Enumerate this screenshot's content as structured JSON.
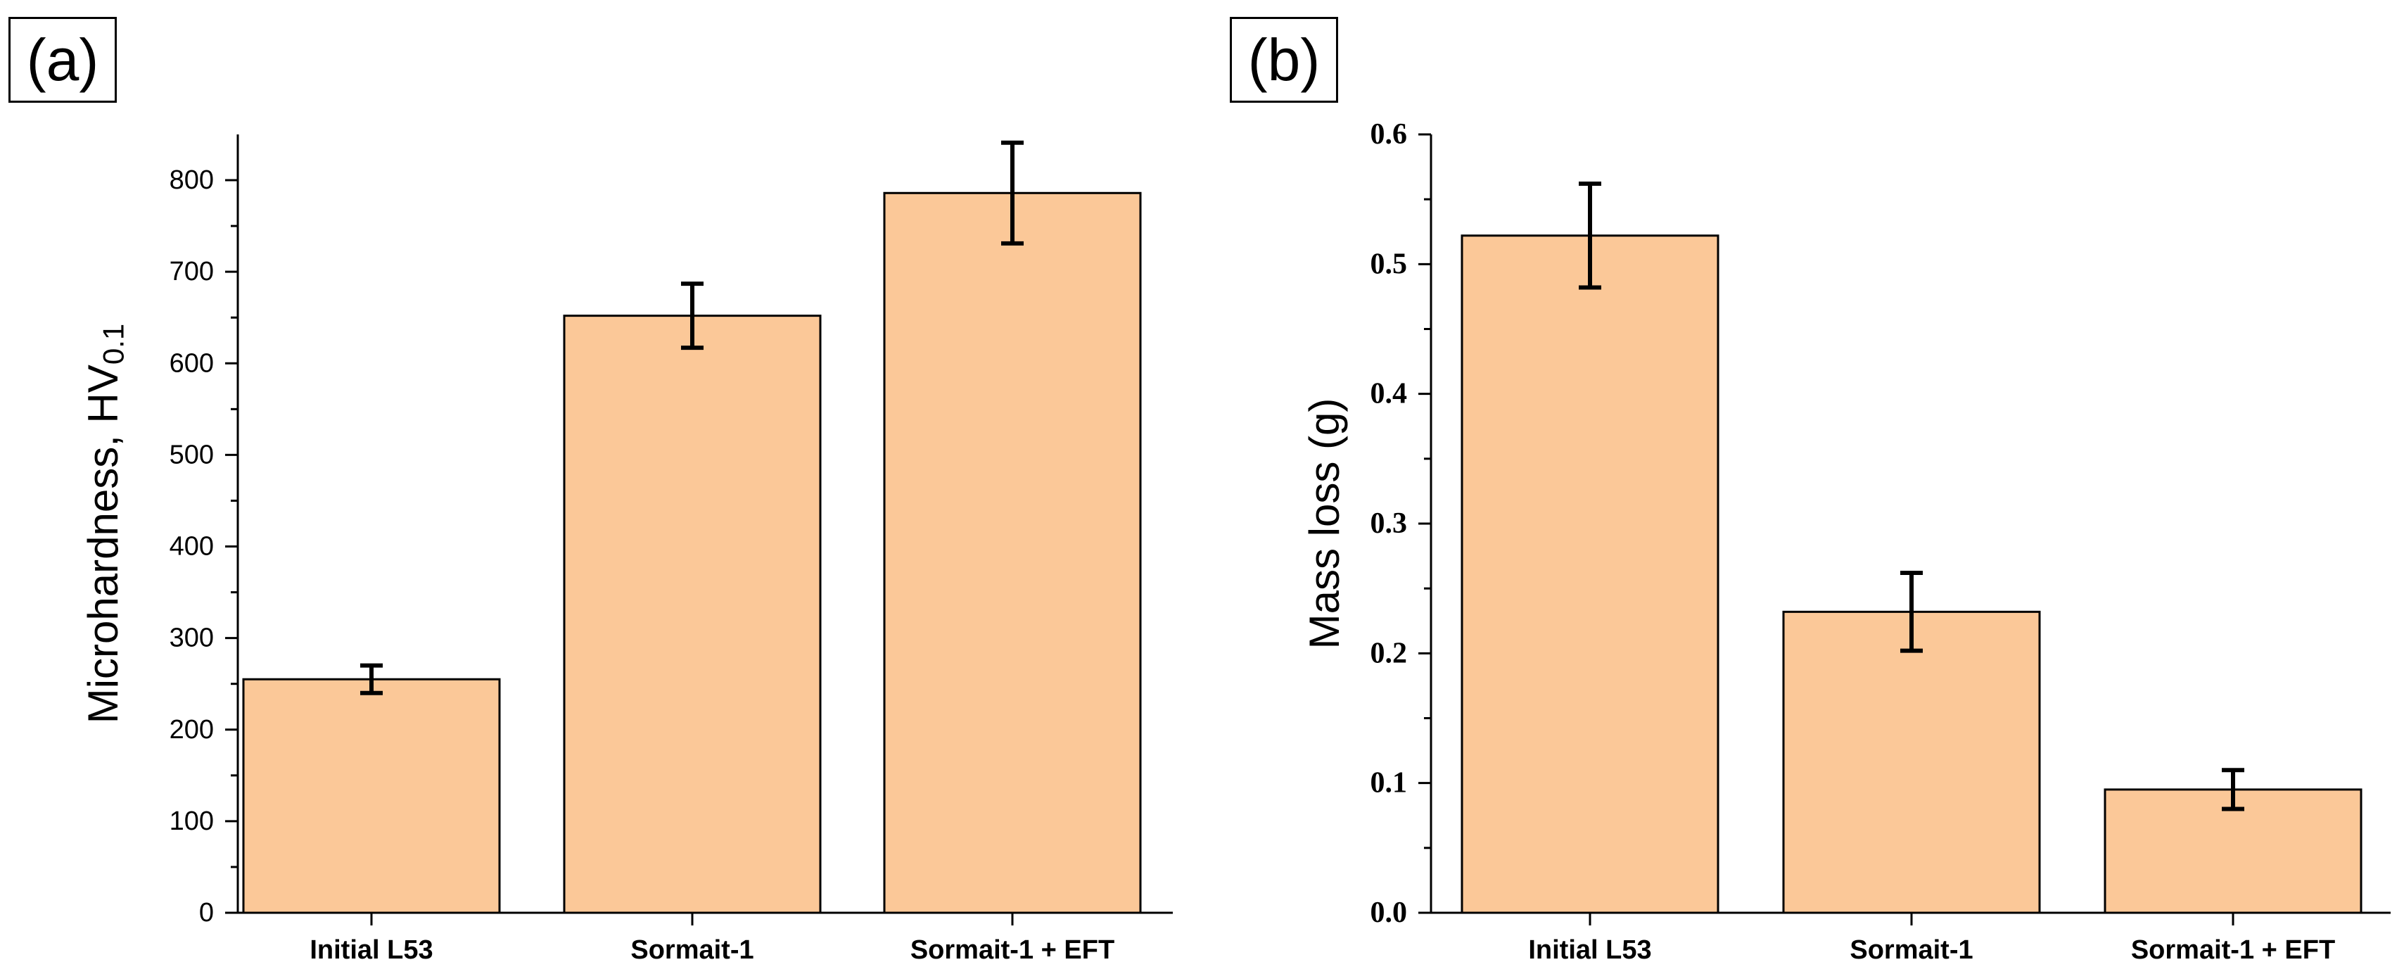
{
  "panels": [
    {
      "id": "a",
      "label": "(a)",
      "ylabel": "Microhardness, HV",
      "ylabel_sub": "0.1"
    },
    {
      "id": "b",
      "label": "(b)",
      "ylabel": "Mass loss (g)",
      "ylabel_sub": ""
    }
  ],
  "colors": {
    "bar_fill": "#FBC898",
    "bar_stroke": "#000000",
    "error_bar": "#000000",
    "axis": "#000000"
  },
  "chart_data": [
    {
      "type": "bar",
      "title": "",
      "categories": [
        "Initial L53",
        "Sormait-1",
        "Sormait-1 + EFT"
      ],
      "values": [
        255,
        652,
        786
      ],
      "errors": [
        15,
        35,
        55
      ],
      "xlabel": "",
      "ylabel": "Microhardness, HV0.1",
      "ylim": [
        0,
        850
      ],
      "yticks": [
        0,
        100,
        200,
        300,
        400,
        500,
        600,
        700,
        800
      ],
      "ytick_labels": [
        "0",
        "100",
        "200",
        "300",
        "400",
        "500",
        "600",
        "700",
        "800"
      ],
      "grid": false,
      "legend": "none"
    },
    {
      "type": "bar",
      "title": "",
      "categories": [
        "Initial L53",
        "Sormait-1",
        "Sormait-1 + EFT"
      ],
      "values": [
        0.522,
        0.232,
        0.095
      ],
      "errors": [
        0.04,
        0.03,
        0.015
      ],
      "xlabel": "",
      "ylabel": "Mass loss (g)",
      "ylim": [
        0,
        0.6
      ],
      "yticks": [
        0,
        0.1,
        0.2,
        0.3,
        0.4,
        0.5,
        0.6
      ],
      "ytick_labels": [
        "0.0",
        "0.1",
        "0.2",
        "0.3",
        "0.4",
        "0.5",
        "0.6"
      ],
      "grid": false,
      "legend": "none"
    }
  ]
}
